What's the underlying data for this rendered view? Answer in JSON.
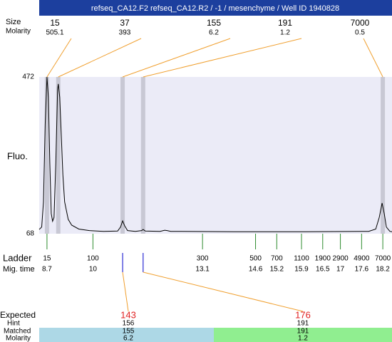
{
  "chart_data": {
    "type": "electropherogram",
    "title": "refseq_CA12.F2  refseq_CA12.R2 / -1 / mesenchyme / Well ID 1940828",
    "size_label": "Size",
    "molarity_label": "Molarity",
    "y_label": "Fluo.",
    "ladder_label": "Ladder",
    "time_label": "Mig. time",
    "expected_label": "Expected",
    "hint_label": "Hint",
    "matched_label": "Matched",
    "matched_molarity_label": "Molarity",
    "ylim": [
      68,
      472
    ],
    "yticks": [
      68,
      472
    ],
    "xlim": [
      8.48,
      18.46
    ],
    "peaks": [
      {
        "size": 15,
        "molarity": 505.1,
        "time": 8.7
      },
      {
        "size": 37,
        "molarity": 393,
        "time": 9.02
      },
      {
        "size": 155,
        "molarity": 6.2,
        "time": 10.84
      },
      {
        "size": 191,
        "molarity": 1.2,
        "time": 11.42
      },
      {
        "size": 7000,
        "molarity": 0.5,
        "time": 18.2
      }
    ],
    "ladder": [
      {
        "size": 15,
        "time": 8.7
      },
      {
        "size": 100,
        "time": 10
      },
      {
        "size": 300,
        "time": 13.1
      },
      {
        "size": 500,
        "time": 14.6
      },
      {
        "size": 700,
        "time": 15.2
      },
      {
        "size": 1100,
        "time": 15.9
      },
      {
        "size": 1900,
        "time": 16.5
      },
      {
        "size": 2900,
        "time": 17
      },
      {
        "size": 4900,
        "time": 17.6
      },
      {
        "size": 7000,
        "time": 18.2
      }
    ],
    "expected": [
      {
        "expected": 143,
        "hint": 156,
        "matched": 155,
        "molarity": 6.2,
        "peak": 2,
        "color": "#add8e6"
      },
      {
        "expected": 176,
        "hint": 191,
        "matched": 191,
        "molarity": 1.2,
        "peak": 3,
        "color": "#90ee90"
      }
    ],
    "trace": {
      "x": [
        8.48,
        8.55,
        8.6,
        8.65,
        8.7,
        8.74,
        8.78,
        8.82,
        8.86,
        8.9,
        8.95,
        9.0,
        9.02,
        9.06,
        9.1,
        9.15,
        9.2,
        9.3,
        9.4,
        9.6,
        9.9,
        10.3,
        10.7,
        10.78,
        10.84,
        10.9,
        10.98,
        11.2,
        11.38,
        11.42,
        11.48,
        11.9,
        12.03,
        12.1,
        12.2,
        14,
        16,
        17.8,
        18.0,
        18.1,
        18.18,
        18.24,
        18.3,
        18.4,
        18.46
      ],
      "y": [
        79,
        85,
        150,
        350,
        472,
        420,
        250,
        120,
        100,
        110,
        250,
        440,
        454,
        420,
        330,
        220,
        150,
        105,
        90,
        80,
        76,
        74,
        75,
        85,
        101,
        88,
        76,
        74,
        76,
        79,
        75,
        74,
        77,
        76,
        74,
        73,
        73,
        74,
        80,
        110,
        147,
        120,
        85,
        74,
        73
      ]
    }
  }
}
